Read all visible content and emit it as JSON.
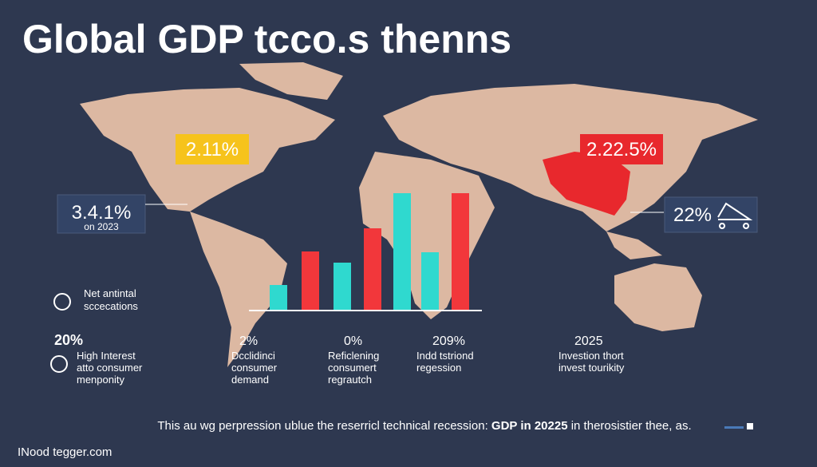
{
  "title": "Global GDP tcco.s thenns",
  "chart_data": {
    "type": "bar",
    "values": [
      31,
      73,
      59,
      102,
      146,
      72,
      146
    ],
    "colors": [
      "#2fd9cf",
      "#f2373b",
      "#2fd9cf",
      "#f2373b",
      "#2fd9cf",
      "#2fd9cf",
      "#f2373b"
    ]
  },
  "callouts": {
    "north_america": "2.11%",
    "china": "2.22.5%",
    "west": {
      "value": "3.4.1%",
      "note": "on 2023"
    },
    "east": "22%"
  },
  "left_notes": {
    "icon_text": [
      "Net antintal",
      "sccecations"
    ],
    "stat": "20%",
    "lines": [
      "High Interest",
      "atto consumer",
      "menponity"
    ]
  },
  "columns": [
    {
      "stat": "2%",
      "lines": [
        "Dcclidinci",
        "consumer",
        "demand"
      ]
    },
    {
      "stat": "0%",
      "lines": [
        "Reficlening",
        "consumert",
        "regrautch"
      ]
    },
    {
      "stat": "209%",
      "lines": [
        "Indd tstriond",
        "regession"
      ]
    },
    {
      "stat": "2025",
      "lines": [
        "Investion thort",
        "invest tourikity"
      ]
    }
  ],
  "footer": {
    "start": "This au wg perpression ublue the reserricl technical recession: ",
    "bold": "GDP in 20225",
    "end": " in therosistier thee, as."
  },
  "source": "INood tegger.com"
}
